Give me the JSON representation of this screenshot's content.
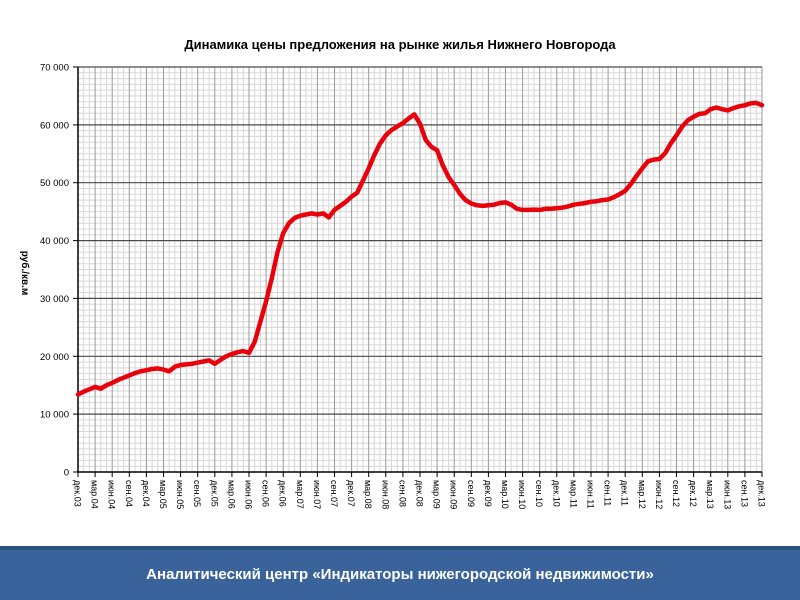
{
  "page": {
    "background": "#ffffff"
  },
  "chart_data": {
    "type": "line",
    "title": "Динамика цены предложения на рынке жилья Нижнего Новгорода",
    "ylabel": "руб./кв.м",
    "xlabel": "",
    "ylim": [
      0,
      70000
    ],
    "y_major_step": 10000,
    "y_minor_step": 1000,
    "y_tick_labels": [
      "0",
      "10 000",
      "20 000",
      "30 000",
      "40 000",
      "50 000",
      "60 000",
      "70 000"
    ],
    "x_tick_labels": [
      "дек.03",
      "мар.04",
      "июн.04",
      "сен.04",
      "дек.04",
      "мар.05",
      "июн.05",
      "сен.05",
      "дек.05",
      "мар.06",
      "июн.06",
      "сен.06",
      "дек.06",
      "мар.07",
      "июн.07",
      "сен.07",
      "дек.07",
      "мар.08",
      "июн.08",
      "сен.08",
      "дек.08",
      "мар.09",
      "июн.09",
      "сен.09",
      "дек.09",
      "мар.10",
      "июн.10",
      "сен.10",
      "дек.10",
      "мар.11",
      "июн.11",
      "сен.11",
      "дек.11",
      "мар.12",
      "июн.12",
      "сен.12",
      "дек.12",
      "мар.13",
      "июн.13",
      "сен.13",
      "дек.13"
    ],
    "months_per_x_tick": 3,
    "x_unit": "month",
    "line_color": "#e8000b",
    "legend": "none",
    "grid": {
      "minor_color": "#d7d7d7",
      "quarter_color": "#9a9a9a",
      "major_color": "#4a4a4a",
      "axis_color": "#000000"
    },
    "values": [
      13400,
      13900,
      14300,
      14700,
      14400,
      15000,
      15400,
      15900,
      16300,
      16700,
      17100,
      17400,
      17600,
      17800,
      17900,
      17700,
      17400,
      18200,
      18500,
      18600,
      18700,
      18900,
      19100,
      19300,
      18700,
      19400,
      20000,
      20400,
      20700,
      20900,
      20600,
      22500,
      26000,
      29500,
      33500,
      38000,
      41300,
      43000,
      43900,
      44300,
      44500,
      44700,
      44500,
      44700,
      44000,
      45300,
      46000,
      46700,
      47600,
      48300,
      50400,
      52500,
      54800,
      56800,
      58200,
      59100,
      59700,
      60300,
      61100,
      61800,
      60200,
      57400,
      56200,
      55600,
      53000,
      51000,
      49600,
      48100,
      47000,
      46400,
      46100,
      46000,
      46100,
      46200,
      46500,
      46600,
      46200,
      45500,
      45300,
      45300,
      45350,
      45300,
      45500,
      45500,
      45600,
      45700,
      45900,
      46200,
      46350,
      46500,
      46700,
      46800,
      47000,
      47100,
      47500,
      48000,
      48600,
      49800,
      51200,
      52500,
      53700,
      54000,
      54100,
      55100,
      56800,
      58200,
      59700,
      60800,
      61400,
      61900,
      62000,
      62700,
      63000,
      62700,
      62500,
      62900,
      63200,
      63400,
      63700,
      63800,
      63400
    ]
  },
  "footer": {
    "text": "Аналитический центр «Индикаторы нижегородской недвижимости»",
    "bar_color": "#3a639c",
    "stripe_color": "#2a5080",
    "text_color": "#ffffff"
  }
}
